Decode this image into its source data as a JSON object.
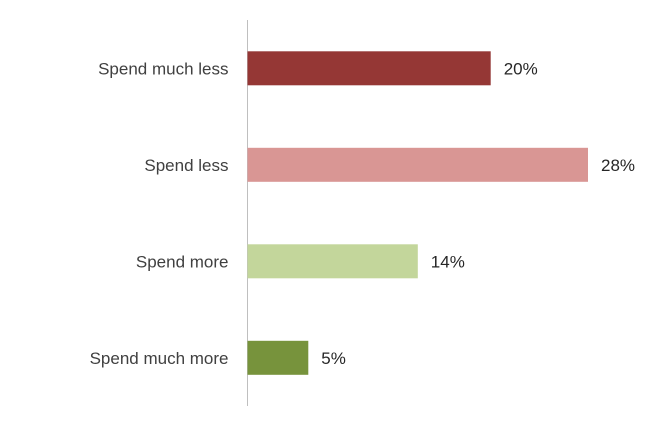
{
  "chart_data": {
    "type": "bar",
    "orientation": "horizontal",
    "title": "",
    "xlabel": "",
    "ylabel": "",
    "categories": [
      "Spend much less",
      "Spend less",
      "Spend more",
      "Spend much more"
    ],
    "values": [
      20,
      28,
      14,
      5
    ],
    "value_labels": [
      "20%",
      "28%",
      "14%",
      "5%"
    ],
    "colors": [
      "#953735",
      "#D99694",
      "#C3D69B",
      "#77933C"
    ],
    "xlim": [
      0,
      28
    ],
    "grid": false,
    "legend": "none"
  }
}
